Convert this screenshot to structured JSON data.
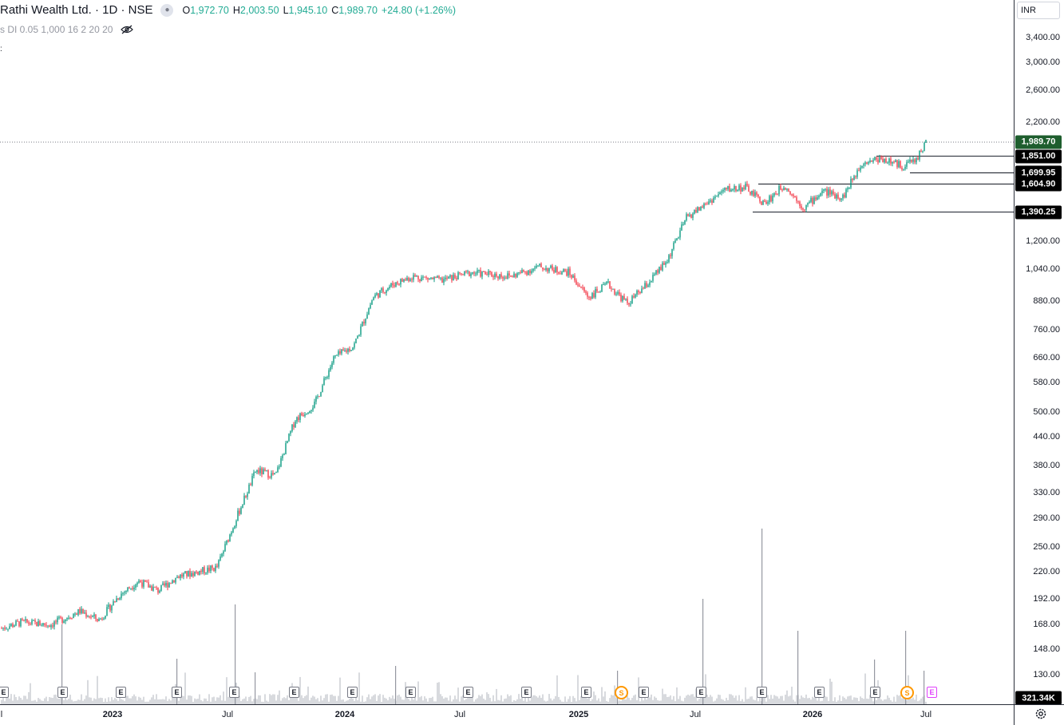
{
  "legend": {
    "title": "Rathi Wealth Ltd. · 1D · NSE",
    "o_label": "O",
    "o_value": "1,972.70",
    "h_label": "H",
    "h_value": "2,003.50",
    "l_label": "L",
    "l_value": "1,945.10",
    "c_label": "C",
    "c_value": "1,989.70",
    "change": "+24.80 (+1.26%)",
    "indicator": "s DI 0.05 1,000 16 2 20 20",
    "stray": ":"
  },
  "currency": "INR",
  "price_axis": {
    "ticks": [
      "3,400.00",
      "3,000.00",
      "2,600.00",
      "2,200.00",
      "1,200.00",
      "1,040.00",
      "880.00",
      "760.00",
      "660.00",
      "580.00",
      "500.00",
      "440.00",
      "380.00",
      "330.00",
      "290.00",
      "250.00",
      "220.00",
      "192.00",
      "168.00",
      "148.00",
      "130.00"
    ],
    "tick_values": [
      3400,
      3000,
      2600,
      2200,
      1200,
      1040,
      880,
      760,
      660,
      580,
      500,
      440,
      380,
      330,
      290,
      250,
      220,
      192,
      168,
      148,
      130
    ],
    "scale": "log"
  },
  "price_labels": [
    {
      "text": "1,989.70",
      "value": 1989.7,
      "color": "#1e5e2e"
    },
    {
      "text": "1,851.00",
      "value": 1851.0,
      "color": "#000000"
    },
    {
      "text": "1,699.95",
      "value": 1699.95,
      "color": "#000000"
    },
    {
      "text": "1,604.90",
      "value": 1604.9,
      "color": "#000000"
    },
    {
      "text": "1,390.25",
      "value": 1390.25,
      "color": "#000000"
    }
  ],
  "volume_label": "321.34K",
  "time_axis": [
    {
      "text": "l",
      "year": false
    },
    {
      "text": "2023",
      "year": true
    },
    {
      "text": "Jul",
      "year": false
    },
    {
      "text": "2024",
      "year": true
    },
    {
      "text": "Jul",
      "year": false
    },
    {
      "text": "2025",
      "year": true
    },
    {
      "text": "Jul",
      "year": false
    },
    {
      "text": "2026",
      "year": true
    },
    {
      "text": "Jul",
      "year": false
    }
  ],
  "events": {
    "earnings_label": "E",
    "split_label": "S",
    "count_earnings": 16
  },
  "chart_data": {
    "type": "candlestick",
    "symbol": "Rathi Wealth Ltd.",
    "interval": "1D",
    "exchange": "NSE",
    "price_scale": "log",
    "y_range": [
      120,
      3700
    ],
    "path": [
      [
        0,
        165
      ],
      [
        0.02,
        170
      ],
      [
        0.05,
        168
      ],
      [
        0.08,
        180
      ],
      [
        0.1,
        172
      ],
      [
        0.12,
        195
      ],
      [
        0.14,
        210
      ],
      [
        0.16,
        200
      ],
      [
        0.18,
        215
      ],
      [
        0.2,
        220
      ],
      [
        0.22,
        225
      ],
      [
        0.24,
        290
      ],
      [
        0.26,
        370
      ],
      [
        0.28,
        360
      ],
      [
        0.3,
        480
      ],
      [
        0.32,
        520
      ],
      [
        0.34,
        660
      ],
      [
        0.36,
        700
      ],
      [
        0.38,
        900
      ],
      [
        0.4,
        960
      ],
      [
        0.42,
        1000
      ],
      [
        0.45,
        980
      ],
      [
        0.48,
        1020
      ],
      [
        0.52,
        1000
      ],
      [
        0.55,
        1050
      ],
      [
        0.58,
        1020
      ],
      [
        0.6,
        900
      ],
      [
        0.62,
        960
      ],
      [
        0.64,
        870
      ],
      [
        0.66,
        960
      ],
      [
        0.68,
        1080
      ],
      [
        0.7,
        1350
      ],
      [
        0.72,
        1450
      ],
      [
        0.74,
        1560
      ],
      [
        0.76,
        1580
      ],
      [
        0.78,
        1450
      ],
      [
        0.8,
        1600
      ],
      [
        0.82,
        1420
      ],
      [
        0.84,
        1550
      ],
      [
        0.86,
        1500
      ],
      [
        0.88,
        1800
      ],
      [
        0.9,
        1830
      ],
      [
        0.92,
        1760
      ],
      [
        0.935,
        1820
      ],
      [
        0.945,
        1990
      ]
    ],
    "levels": [
      1851.0,
      1699.95,
      1604.9,
      1390.25
    ],
    "last_close": 1989.7
  },
  "colors": {
    "up": "#26a69a",
    "down": "#ef5350",
    "volume": "#b2b5be"
  }
}
